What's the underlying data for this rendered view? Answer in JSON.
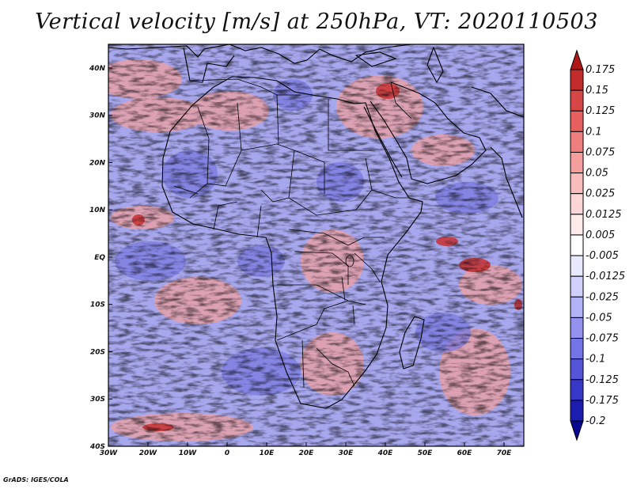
{
  "title": "Vertical velocity [m/s] at 250hPa, VT: 2020110503",
  "credit": "GrADS: IGES/COLA",
  "map": {
    "variable": "Vertical velocity",
    "units": "m/s",
    "level": "250hPa",
    "valid_time": "2020110503",
    "lon_range": [
      -30,
      75
    ],
    "lat_range": [
      -40,
      45
    ],
    "lon_ticks": [
      "30W",
      "20W",
      "10W",
      "0",
      "10E",
      "20E",
      "30E",
      "40E",
      "50E",
      "60E",
      "70E"
    ],
    "lat_ticks": [
      "40N",
      "30N",
      "20N",
      "10N",
      "EQ",
      "10S",
      "20S",
      "30S",
      "40S"
    ]
  },
  "colorbar": {
    "levels": [
      "0.175",
      "0.15",
      "0.125",
      "0.1",
      "0.075",
      "0.05",
      "0.025",
      "0.0125",
      "0.005",
      "-0.005",
      "-0.0125",
      "-0.025",
      "-0.05",
      "-0.075",
      "-0.1",
      "-0.125",
      "-0.175",
      "-0.2"
    ],
    "colors": [
      "#b01818",
      "#c22c2c",
      "#d64646",
      "#e66060",
      "#ef7f7f",
      "#f59e9e",
      "#f9bcbc",
      "#fcd6d6",
      "#ffeaea",
      "#ffffff",
      "#e8e8ff",
      "#d0d0fb",
      "#b2b2f6",
      "#9393ef",
      "#7474e6",
      "#5555da",
      "#3838c8",
      "#1c1cae",
      "#080890"
    ]
  }
}
